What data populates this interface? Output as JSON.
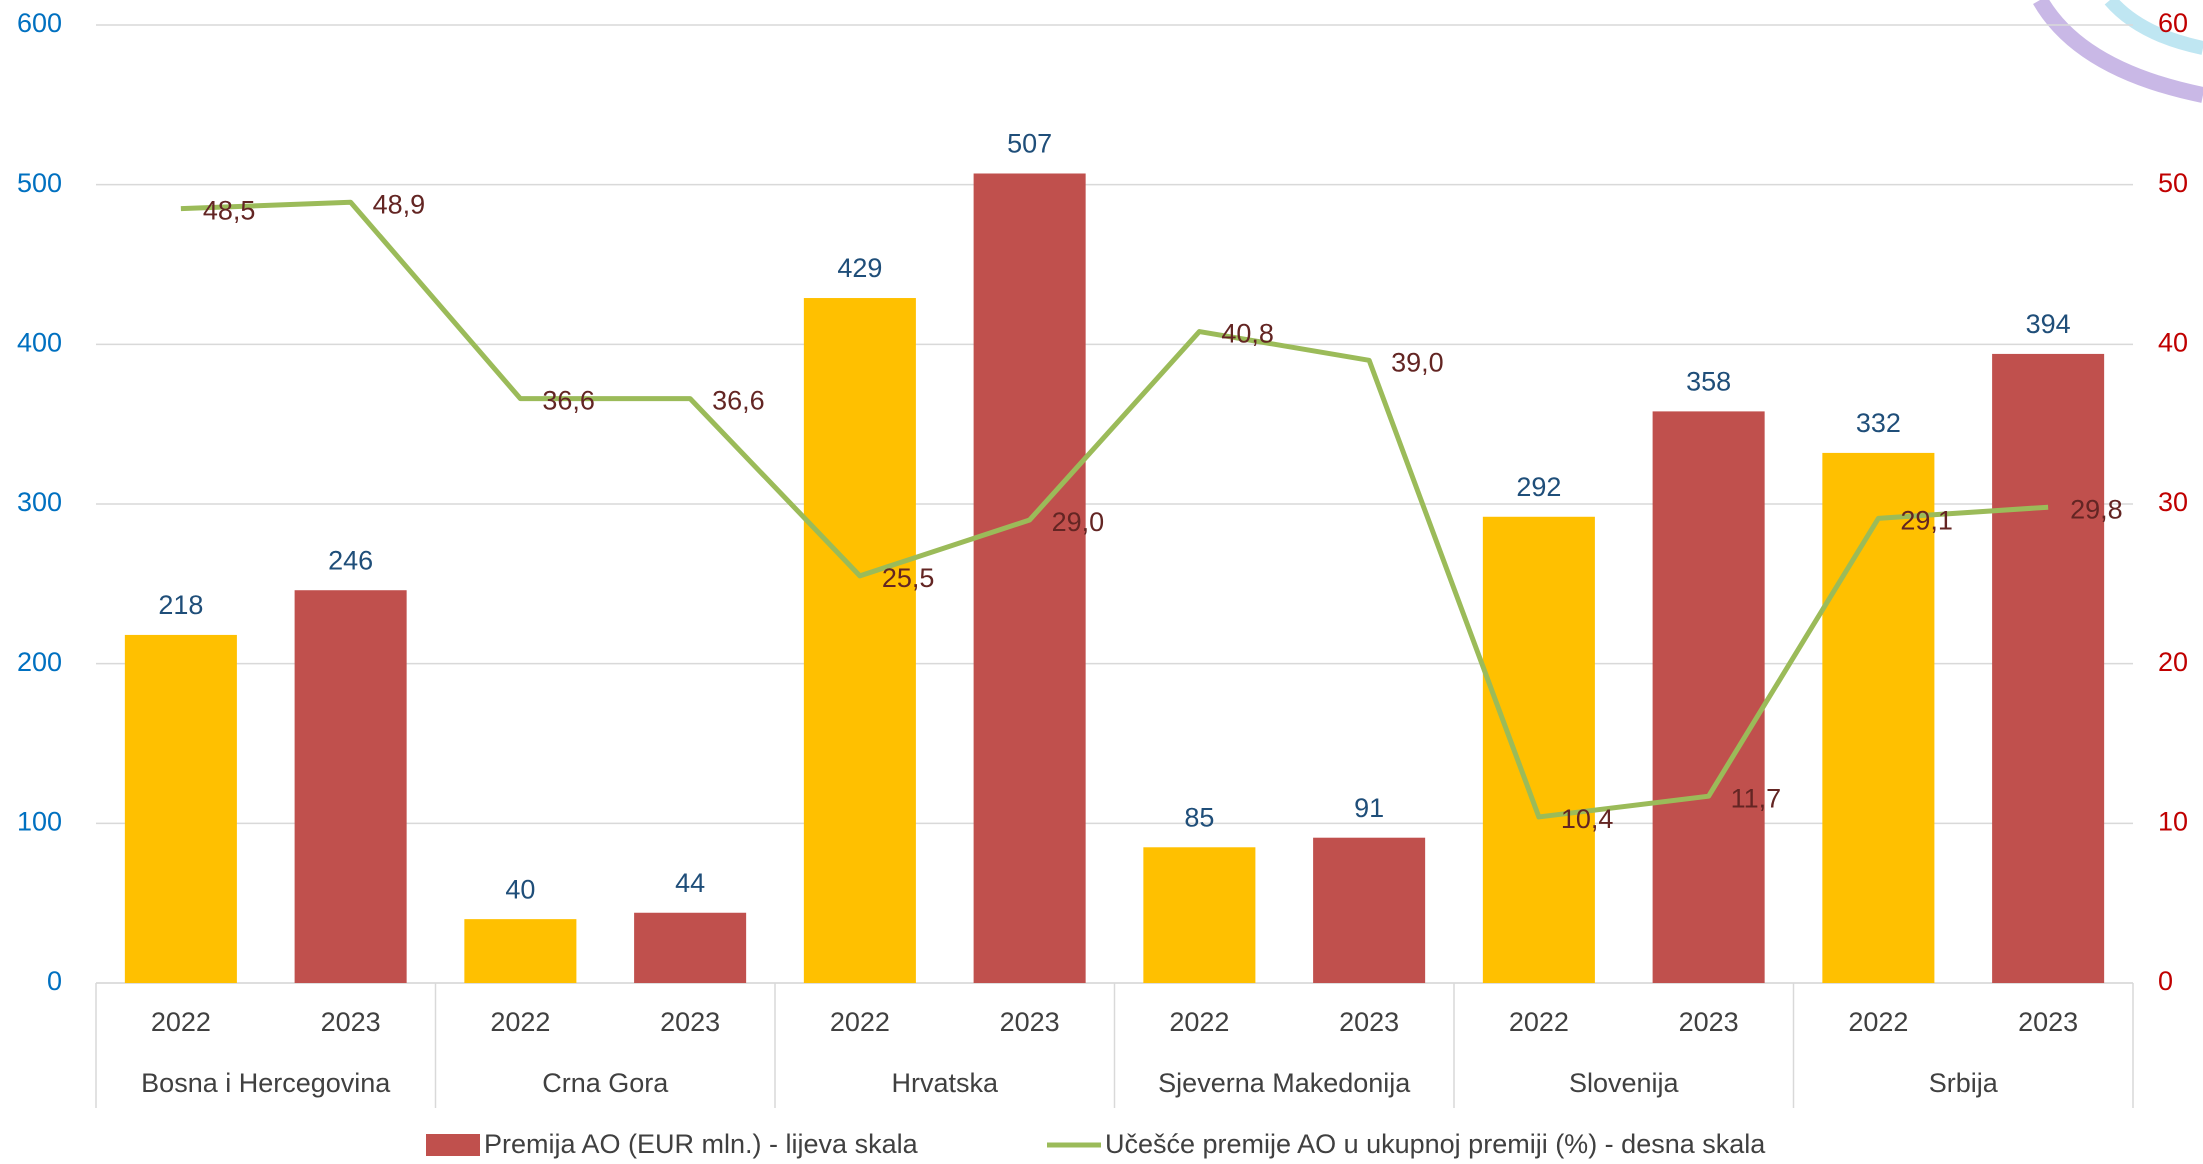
{
  "chart_data": {
    "type": "bar_line",
    "categories": [
      "2022",
      "2023",
      "2022",
      "2023",
      "2022",
      "2023",
      "2022",
      "2023",
      "2022",
      "2023",
      "2022",
      "2023"
    ],
    "groups": [
      "Bosna i Hercegovina",
      "Crna Gora",
      "Hrvatska",
      "Sjeverna Makedonija",
      "Slovenija",
      "Srbija"
    ],
    "series": [
      {
        "name": "Premija AO (EUR mln.) - lijeva skala",
        "color": "#C0504D",
        "colors": [
          "#FFC000",
          "#C0504D",
          "#FFC000",
          "#C0504D",
          "#FFC000",
          "#C0504D",
          "#FFC000",
          "#C0504D",
          "#FFC000",
          "#C0504D",
          "#FFC000",
          "#C0504D"
        ],
        "values": [
          218,
          246,
          40,
          44,
          429,
          507,
          85,
          91,
          292,
          358,
          332,
          394
        ]
      },
      {
        "name": "Učešće premije AO u ukupnoj premiji (%) - desna skala",
        "color": "#9BBB59",
        "axis": "y2",
        "values": [
          48.5,
          48.9,
          36.6,
          36.6,
          25.5,
          29.0,
          40.8,
          39.0,
          10.4,
          11.7,
          29.1,
          29.8
        ],
        "value_labels": [
          "48,5",
          "48,9",
          "36,6",
          "36,6",
          "25,5",
          "29,0",
          "40,8",
          "39,0",
          "10,4",
          "11,7",
          "29,1",
          "29,8"
        ]
      }
    ],
    "ylim": [
      0,
      600
    ],
    "yticks": [
      0,
      100,
      200,
      300,
      400,
      500,
      600
    ],
    "y2lim": [
      0,
      60
    ],
    "y2ticks": [
      0,
      10,
      20,
      30,
      40,
      50,
      60
    ],
    "grid": true,
    "legend": "bottom"
  }
}
